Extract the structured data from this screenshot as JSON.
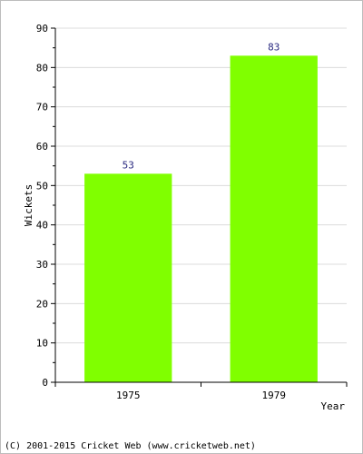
{
  "chart_data": {
    "type": "bar",
    "categories": [
      "1975",
      "1979"
    ],
    "values": [
      53,
      83
    ],
    "value_labels": [
      "53",
      "83"
    ],
    "title": "",
    "xlabel": "Year",
    "ylabel": "Wickets",
    "ylim": [
      0,
      90
    ],
    "yticks": [
      "0",
      "10",
      "20",
      "30",
      "40",
      "50",
      "60",
      "70",
      "80",
      "90"
    ],
    "grid": true,
    "bar_color": "#80ff00",
    "value_label_color": "#2a2a80"
  },
  "footer": {
    "copyright": "(C) 2001-2015 Cricket Web (www.cricketweb.net)"
  }
}
